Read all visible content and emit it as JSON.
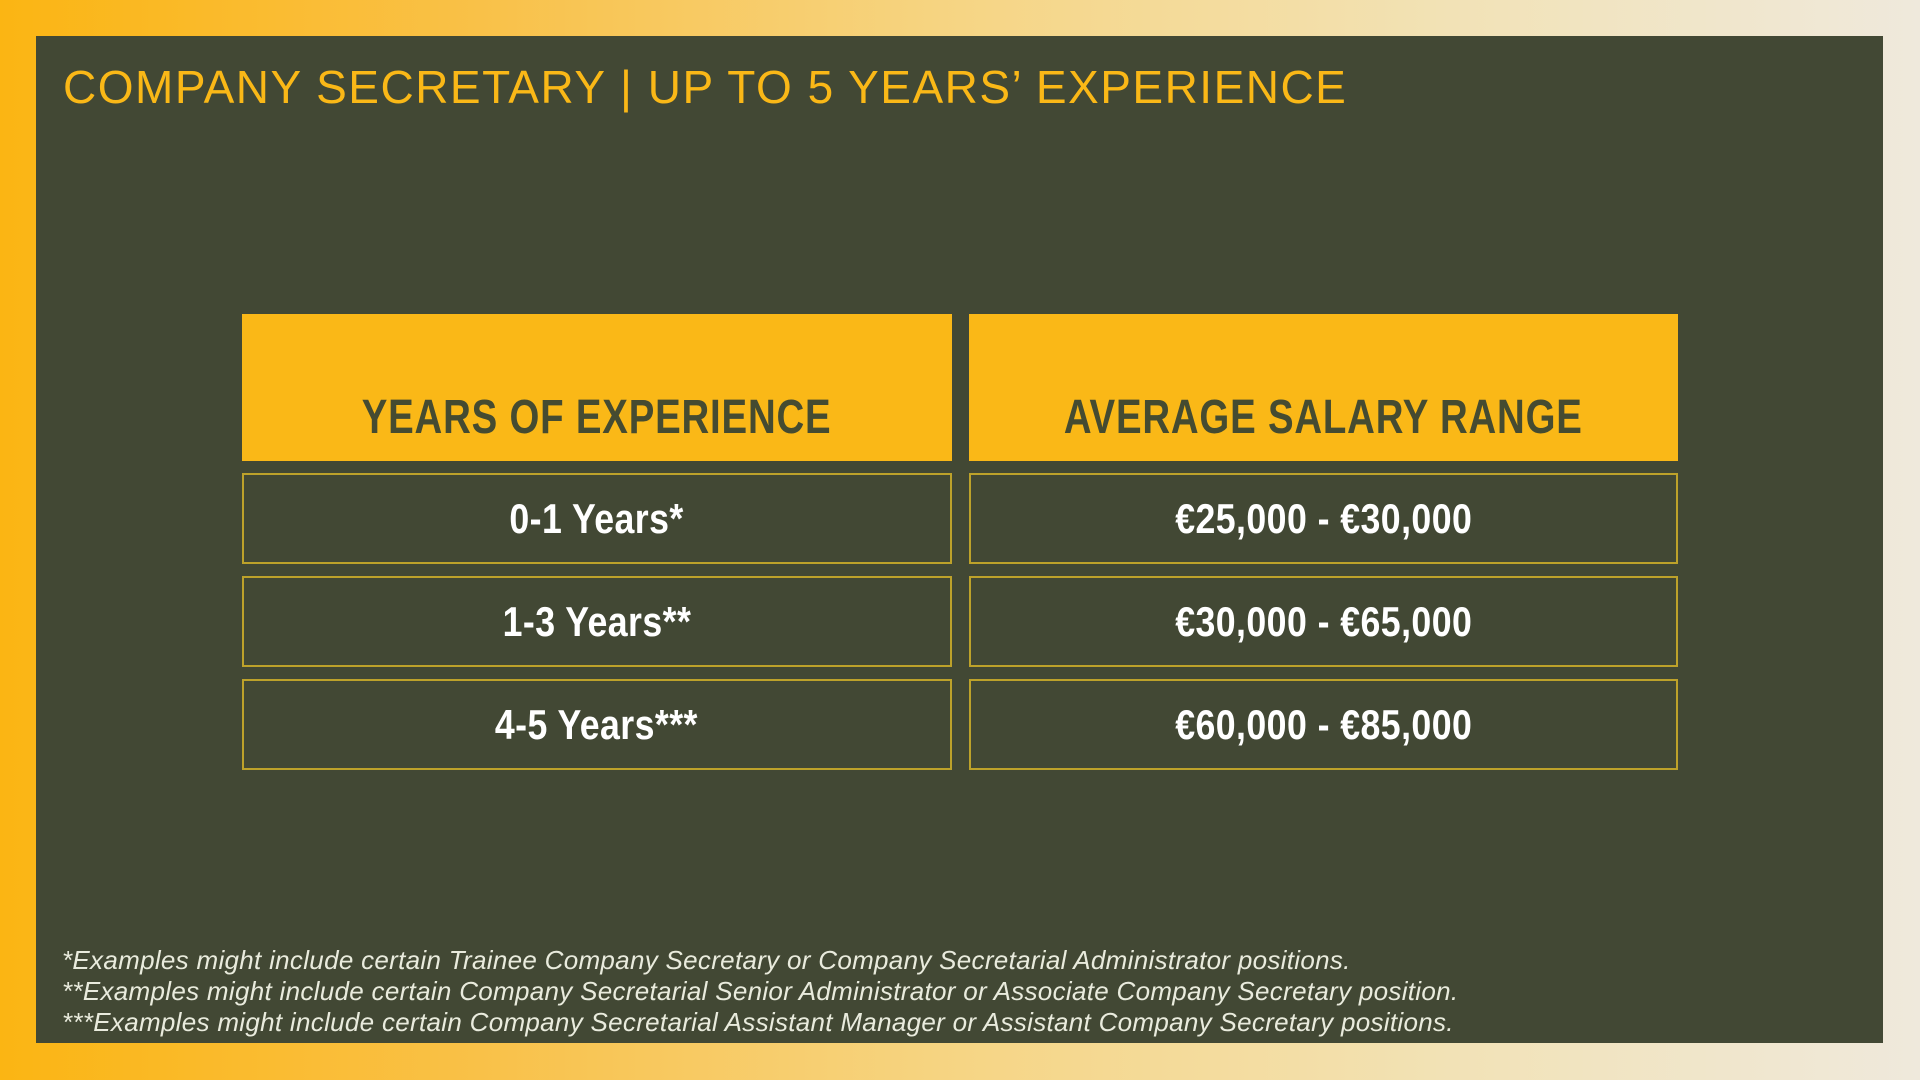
{
  "chart_data": {
    "type": "table",
    "title": "COMPANY SECRETARY | UP TO 5 YEARS’ EXPERIENCE",
    "columns": [
      "YEARS OF EXPERIENCE",
      "AVERAGE SALARY RANGE"
    ],
    "rows": [
      [
        "0-1 Years*",
        "€25,000 - €30,000"
      ],
      [
        "1-3 Years**",
        "€30,000 - €65,000"
      ],
      [
        "4-5 Years***",
        "€60,000 - €85,000"
      ]
    ],
    "salary_ranges_eur": [
      [
        25000,
        30000
      ],
      [
        30000,
        65000
      ],
      [
        60000,
        85000
      ]
    ],
    "footnotes": [
      "*Examples might include certain Trainee Company Secretary or Company Secretarial Administrator positions.",
      "**Examples might include certain Company Secretarial Senior Administrator or Associate Company Secretary position.",
      "***Examples might include certain Company Secretarial Assistant Manager or Assistant Company Secretary positions."
    ]
  },
  "colors": {
    "gold": "#fab817",
    "panel": "#424834",
    "header_text": "#454b31",
    "row_border": "#bda22a",
    "row_text": "#ffffff",
    "footer_text": "#e9ebdd",
    "frame_gold": "#fbb513",
    "frame_cream": "#efe9dc"
  }
}
